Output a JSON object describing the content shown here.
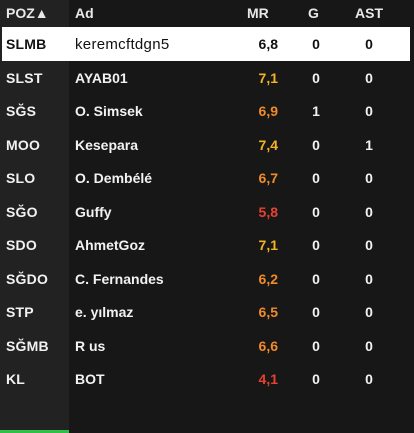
{
  "header": {
    "pos": "POZ▲",
    "name": "Ad",
    "mr": "MR",
    "g": "G",
    "ast": "AST"
  },
  "rows": [
    {
      "pos": "SLMB",
      "name": "keremcftdgn5",
      "mr": "6,8",
      "g": "0",
      "ast": "0",
      "mr_color": "#111111",
      "selected": true
    },
    {
      "pos": "SLST",
      "name": "AYAB01",
      "mr": "7,1",
      "g": "0",
      "ast": "0",
      "mr_color": "#f5b324"
    },
    {
      "pos": "SĞS",
      "name": "O. Simsek",
      "mr": "6,9",
      "g": "1",
      "ast": "0",
      "mr_color": "#f08a2a"
    },
    {
      "pos": "MOO",
      "name": "Kesepara",
      "mr": "7,4",
      "g": "0",
      "ast": "1",
      "mr_color": "#f5b324"
    },
    {
      "pos": "SLO",
      "name": "O. Dembélé",
      "mr": "6,7",
      "g": "0",
      "ast": "0",
      "mr_color": "#f08a2a"
    },
    {
      "pos": "SĞO",
      "name": "Guffy",
      "mr": "5,8",
      "g": "0",
      "ast": "0",
      "mr_color": "#e8412f"
    },
    {
      "pos": "SDO",
      "name": "AhmetGoz",
      "mr": "7,1",
      "g": "0",
      "ast": "0",
      "mr_color": "#f5b324"
    },
    {
      "pos": "SĞDO",
      "name": "C. Fernandes",
      "mr": "6,2",
      "g": "0",
      "ast": "0",
      "mr_color": "#f08a2a"
    },
    {
      "pos": "STP",
      "name": "e. yılmaz",
      "mr": "6,5",
      "g": "0",
      "ast": "0",
      "mr_color": "#f08a2a"
    },
    {
      "pos": "SĞMB",
      "name": "R us",
      "mr": "6,6",
      "g": "0",
      "ast": "0",
      "mr_color": "#f08a2a"
    },
    {
      "pos": "KL",
      "name": "BOT",
      "mr": "4,1",
      "g": "0",
      "ast": "0",
      "mr_color": "#e8412f"
    }
  ],
  "accent_color": "#2fbf4a"
}
